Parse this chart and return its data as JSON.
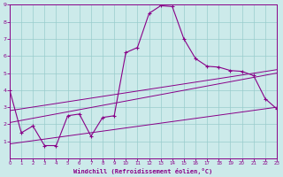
{
  "bg_color": "#cceaea",
  "line_color": "#880088",
  "grid_color": "#99cccc",
  "xlabel": "Windchill (Refroidissement éolien,°C)",
  "xlim": [
    0,
    23
  ],
  "ylim": [
    0,
    9
  ],
  "xticks": [
    0,
    1,
    2,
    3,
    4,
    5,
    6,
    7,
    8,
    9,
    10,
    11,
    12,
    13,
    14,
    15,
    16,
    17,
    18,
    19,
    20,
    21,
    22,
    23
  ],
  "yticks": [
    1,
    2,
    3,
    4,
    5,
    6,
    7,
    8,
    9
  ],
  "curve1_x": [
    0,
    1,
    2,
    3,
    4,
    5,
    6,
    7,
    8,
    9,
    10,
    11,
    12,
    13,
    14,
    15,
    16,
    17,
    18,
    19,
    20,
    21,
    22,
    23
  ],
  "curve1_y": [
    4.0,
    1.5,
    1.9,
    0.75,
    0.75,
    2.5,
    2.6,
    1.3,
    2.4,
    2.5,
    6.2,
    6.5,
    8.5,
    8.95,
    8.9,
    7.0,
    5.85,
    5.4,
    5.35,
    5.15,
    5.1,
    4.85,
    3.5,
    2.9
  ],
  "line1_x": [
    0,
    23
  ],
  "line1_y": [
    2.1,
    5.0
  ],
  "line2_x": [
    0,
    23
  ],
  "line2_y": [
    2.8,
    5.2
  ],
  "line3_x": [
    0,
    23
  ],
  "line3_y": [
    0.85,
    3.0
  ]
}
